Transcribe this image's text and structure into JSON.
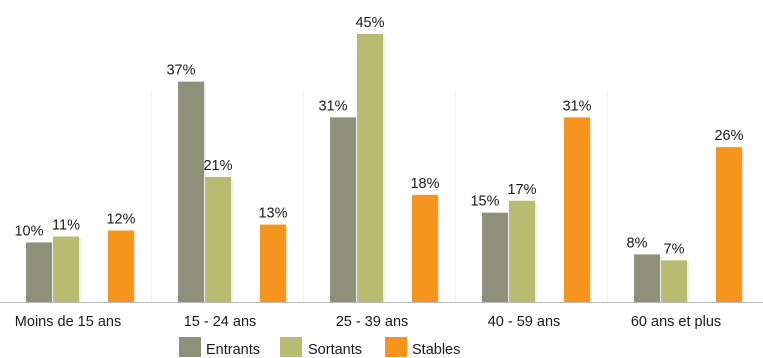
{
  "chart_data": {
    "type": "bar",
    "categories": [
      "Moins de 15 ans",
      "15 - 24 ans",
      "25 - 39 ans",
      "40 - 59 ans",
      "60 ans et plus"
    ],
    "series": [
      {
        "name": "Entrants",
        "values": [
          10,
          37,
          31,
          15,
          8
        ],
        "labels": [
          "10%",
          "37%",
          "31%",
          "15%",
          "8%"
        ],
        "color": "#8e907a"
      },
      {
        "name": "Sortants",
        "values": [
          11,
          21,
          45,
          17,
          7
        ],
        "labels": [
          "11%",
          "21%",
          "45%",
          "17%",
          "7%"
        ],
        "color": "#b8bb70"
      },
      {
        "name": "Stables",
        "values": [
          12,
          13,
          18,
          31,
          26
        ],
        "labels": [
          "12%",
          "13%",
          "18%",
          "31%",
          "26%"
        ],
        "color": "#f7941d"
      }
    ],
    "ylim": [
      0,
      50
    ],
    "grid": false,
    "legend": "bottom-center",
    "title": "",
    "xlabel": "",
    "ylabel": ""
  }
}
